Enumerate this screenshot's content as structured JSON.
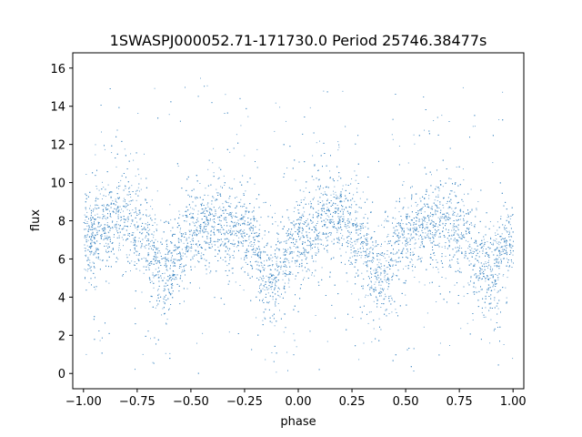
{
  "chart_data": {
    "type": "scatter",
    "title": "1SWASPJ000052.71-171730.0 Period 25746.38477s",
    "xlabel": "phase",
    "ylabel": "flux",
    "xlim": [
      -1.05,
      1.05
    ],
    "ylim": [
      -0.8,
      16.8
    ],
    "xticks": [
      -1.0,
      -0.75,
      -0.5,
      -0.25,
      0.0,
      0.25,
      0.5,
      0.75,
      1.0
    ],
    "xtick_labels": [
      "−1.00",
      "−0.75",
      "−0.50",
      "−0.25",
      "0.00",
      "0.25",
      "0.50",
      "0.75",
      "1.00"
    ],
    "yticks": [
      0,
      2,
      4,
      6,
      8,
      10,
      12,
      14,
      16
    ],
    "ytick_labels": [
      "0",
      "2",
      "4",
      "6",
      "8",
      "10",
      "12",
      "14",
      "16"
    ],
    "grid": false,
    "color": "#3c85c2",
    "series": [
      {
        "description_of_distribution": "dense phase-folded light curve, flux oscillates between about 5 and 9",
        "envelope_phase": [
          -1.0,
          -0.85,
          -0.75,
          -0.62,
          -0.5,
          -0.38,
          -0.25,
          -0.12,
          0.0,
          0.15,
          0.25,
          0.38,
          0.5,
          0.62,
          0.75,
          0.88,
          1.0
        ],
        "envelope_mean_flux": [
          7.0,
          8.2,
          7.8,
          5.2,
          7.2,
          8.0,
          7.5,
          5.0,
          6.9,
          8.3,
          7.8,
          5.1,
          7.2,
          8.0,
          7.5,
          5.2,
          6.8
        ]
      }
    ]
  }
}
